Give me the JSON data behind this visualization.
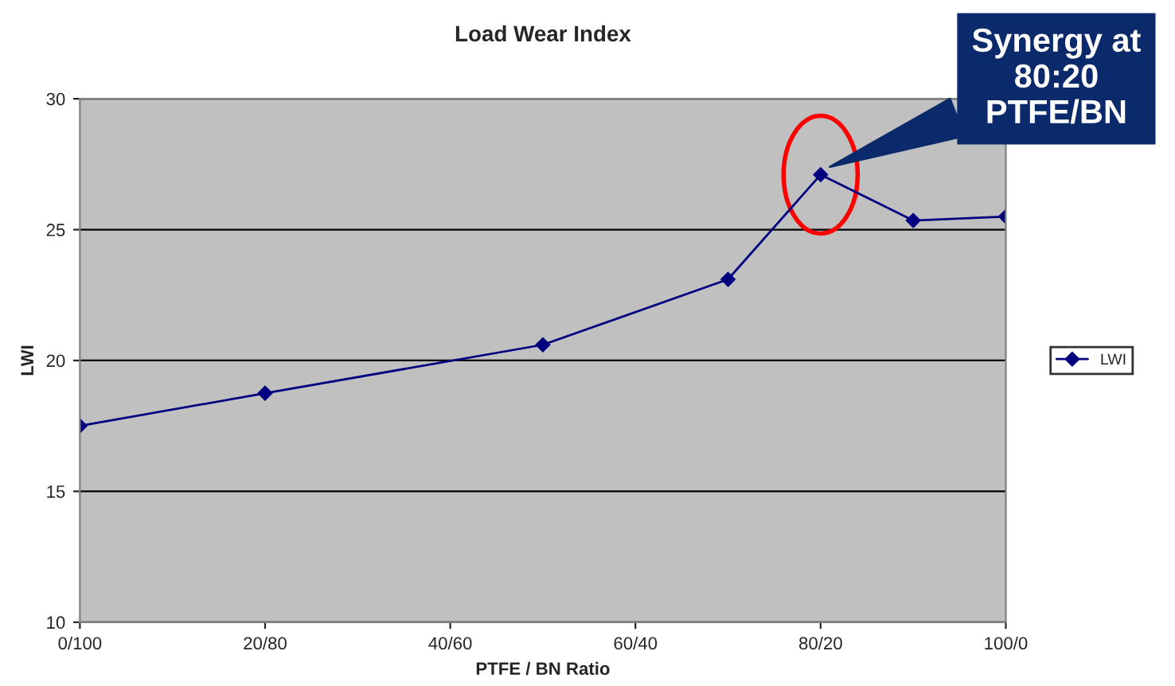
{
  "chart_data": {
    "type": "line",
    "title": "Load Wear Index",
    "xlabel": "PTFE / BN Ratio",
    "ylabel": "LWI",
    "categories": [
      "0/100",
      null,
      "20/80",
      null,
      "40/60",
      null,
      "60/40",
      null,
      "80/20",
      null,
      "100/0"
    ],
    "series": [
      {
        "name": "LWI",
        "color": "#000080",
        "values": [
          17.5,
          null,
          18.75,
          null,
          null,
          20.6,
          null,
          23.1,
          27.1,
          25.35,
          25.5
        ]
      }
    ],
    "ylim": [
      10,
      30
    ],
    "yticks": [
      10,
      15,
      20,
      25,
      30
    ],
    "grid": "y",
    "legend": "right",
    "marker": "diamond",
    "line_style": "solid",
    "annotations": [
      "Synergy at\n80:20\nPTFE/BN"
    ]
  }
}
